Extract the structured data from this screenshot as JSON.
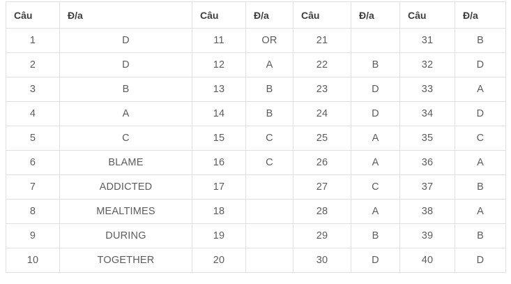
{
  "table": {
    "name": "answer-key-table",
    "columns": [
      "Câu",
      "Đ/a",
      "Câu",
      "Đ/a",
      "Câu",
      "Đ/a",
      "Câu",
      "Đ/a"
    ],
    "rows": [
      [
        "1",
        "D",
        "11",
        "OR",
        "21",
        "",
        "31",
        "B"
      ],
      [
        "2",
        "D",
        "12",
        "A",
        "22",
        "B",
        "32",
        "D"
      ],
      [
        "3",
        "B",
        "13",
        "B",
        "23",
        "D",
        "33",
        "A"
      ],
      [
        "4",
        "A",
        "14",
        "B",
        "24",
        "D",
        "34",
        "D"
      ],
      [
        "5",
        "C",
        "15",
        "C",
        "25",
        "A",
        "35",
        "C"
      ],
      [
        "6",
        "BLAME",
        "16",
        "C",
        "26",
        "A",
        "36",
        "A"
      ],
      [
        "7",
        "ADDICTED",
        "17",
        "",
        "27",
        "C",
        "37",
        "B"
      ],
      [
        "8",
        "MEALTIMES",
        "18",
        "",
        "28",
        "A",
        "38",
        "A"
      ],
      [
        "9",
        "DURING",
        "19",
        "",
        "29",
        "B",
        "39",
        "B"
      ],
      [
        "10",
        "TOGETHER",
        "20",
        "",
        "30",
        "D",
        "40",
        "D"
      ]
    ]
  },
  "colors": {
    "border": "#e0e0e0",
    "header_text": "#3d3d3d",
    "cell_text": "#5c5c5c",
    "background": "#ffffff"
  }
}
